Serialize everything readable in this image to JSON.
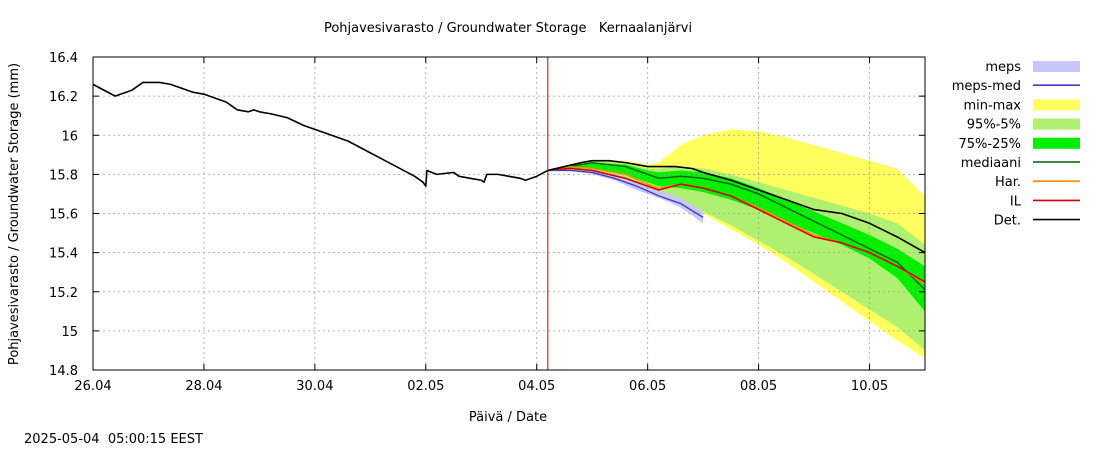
{
  "chart_data": {
    "type": "line",
    "title": "Pohjavesivarasto / Groundwater Storage   Kernaalanjärvi",
    "xlabel": "Päivä / Date",
    "ylabel": "Pohjavesivarasto / Groundwater Storage (mm)",
    "timestamp": "2025-05-04  05:00:15 EEST",
    "x_unit": "days from 26.04.2025",
    "xlim": [
      0,
      15
    ],
    "ylim": [
      14.8,
      16.4
    ],
    "grid": true,
    "legend_position": "right",
    "forecast_start_x": 8.2,
    "forecast_line_color": "#cc0000",
    "x_ticks": [
      {
        "x": 0,
        "label": "26.04"
      },
      {
        "x": 2,
        "label": "28.04"
      },
      {
        "x": 4,
        "label": "30.04"
      },
      {
        "x": 6,
        "label": "02.05"
      },
      {
        "x": 8,
        "label": "04.05"
      },
      {
        "x": 10,
        "label": "06.05"
      },
      {
        "x": 12,
        "label": "08.05"
      },
      {
        "x": 14,
        "label": "10.05"
      }
    ],
    "y_ticks": [
      {
        "y": 16.4,
        "label": "16.4"
      },
      {
        "y": 16.2,
        "label": "16.2"
      },
      {
        "y": 16.0,
        "label": "16"
      },
      {
        "y": 15.8,
        "label": "15.8"
      },
      {
        "y": 15.6,
        "label": "15.6"
      },
      {
        "y": 15.4,
        "label": "15.4"
      },
      {
        "y": 15.2,
        "label": "15.2"
      },
      {
        "y": 15.0,
        "label": "15"
      },
      {
        "y": 14.8,
        "label": "14.8"
      }
    ],
    "legend": [
      {
        "label": "meps",
        "kind": "band",
        "color": "#c8c8f8"
      },
      {
        "label": "meps-med",
        "kind": "line",
        "color": "#4040c0"
      },
      {
        "label": "min-max",
        "kind": "band",
        "color": "#ffff60"
      },
      {
        "label": "95%-5%",
        "kind": "band",
        "color": "#b0f070"
      },
      {
        "label": "75%-25%",
        "kind": "band",
        "color": "#00ee00"
      },
      {
        "label": "mediaani",
        "kind": "line",
        "color": "#006000"
      },
      {
        "label": "Har.",
        "kind": "line",
        "color": "#ff8c00"
      },
      {
        "label": "IL",
        "kind": "line",
        "color": "#dd0000"
      },
      {
        "label": "Det.",
        "kind": "line",
        "color": "#000000"
      }
    ],
    "bands": {
      "min-max": {
        "x": [
          8.2,
          8.6,
          9.0,
          9.6,
          10.0,
          10.2,
          10.6,
          11.0,
          11.5,
          12.0,
          12.5,
          13.0,
          13.5,
          14.0,
          14.5,
          15.0
        ],
        "low": [
          15.82,
          15.82,
          15.81,
          15.77,
          15.73,
          15.7,
          15.66,
          15.6,
          15.52,
          15.44,
          15.35,
          15.25,
          15.15,
          15.05,
          14.95,
          14.86
        ],
        "high": [
          15.82,
          15.85,
          15.87,
          15.87,
          15.85,
          15.86,
          15.95,
          16.0,
          16.03,
          16.02,
          15.99,
          15.95,
          15.91,
          15.87,
          15.83,
          15.69
        ]
      },
      "95%-5%": {
        "x": [
          8.2,
          8.6,
          9.0,
          9.6,
          10.0,
          10.2,
          10.6,
          11.0,
          11.5,
          12.0,
          12.5,
          13.0,
          13.5,
          14.0,
          14.5,
          15.0
        ],
        "low": [
          15.82,
          15.82,
          15.81,
          15.77,
          15.73,
          15.7,
          15.66,
          15.61,
          15.54,
          15.46,
          15.38,
          15.29,
          15.2,
          15.11,
          15.02,
          14.9
        ],
        "high": [
          15.82,
          15.85,
          15.87,
          15.86,
          15.83,
          15.83,
          15.84,
          15.83,
          15.8,
          15.76,
          15.72,
          15.68,
          15.64,
          15.6,
          15.55,
          15.44
        ]
      },
      "75%-25%": {
        "x": [
          8.2,
          8.6,
          9.0,
          9.6,
          10.0,
          10.2,
          10.6,
          11.0,
          11.5,
          12.0,
          12.5,
          13.0,
          13.5,
          14.0,
          14.5,
          15.0
        ],
        "low": [
          15.82,
          15.83,
          15.83,
          15.8,
          15.76,
          15.74,
          15.73,
          15.71,
          15.67,
          15.62,
          15.56,
          15.5,
          15.44,
          15.37,
          15.27,
          15.1
        ],
        "high": [
          15.82,
          15.85,
          15.86,
          15.85,
          15.82,
          15.81,
          15.82,
          15.81,
          15.78,
          15.73,
          15.67,
          15.61,
          15.55,
          15.49,
          15.42,
          15.33
        ]
      },
      "meps": {
        "x": [
          8.2,
          8.6,
          9.0,
          9.4,
          9.8,
          10.2,
          10.6,
          11.0
        ],
        "low": [
          15.82,
          15.82,
          15.8,
          15.77,
          15.72,
          15.68,
          15.63,
          15.55
        ],
        "high": [
          15.82,
          15.83,
          15.82,
          15.8,
          15.76,
          15.72,
          15.68,
          15.61
        ]
      }
    },
    "series": [
      {
        "name": "Det.",
        "color": "#000000",
        "width": 1.6,
        "x": [
          0,
          0.2,
          0.4,
          0.5,
          0.7,
          0.9,
          1.0,
          1.2,
          1.4,
          1.5,
          1.6,
          1.8,
          2.0,
          2.2,
          2.4,
          2.6,
          2.8,
          2.9,
          3.0,
          3.2,
          3.5,
          3.8,
          4.0,
          4.3,
          4.6,
          5.0,
          5.4,
          5.8,
          5.95,
          6.0,
          6.02,
          6.2,
          6.5,
          6.6,
          6.8,
          7.0,
          7.05,
          7.1,
          7.3,
          7.5,
          7.7,
          7.8,
          7.9,
          8.0,
          8.2,
          8.5,
          8.8,
          9.0,
          9.3,
          9.6,
          9.8,
          10.0,
          10.2,
          10.5,
          10.8,
          11.0,
          11.5,
          12.0,
          12.5,
          13.0,
          13.5,
          14.0,
          14.5,
          15.0
        ],
        "y": [
          16.26,
          16.23,
          16.2,
          16.21,
          16.23,
          16.27,
          16.27,
          16.27,
          16.26,
          16.25,
          16.24,
          16.22,
          16.21,
          16.19,
          16.17,
          16.13,
          16.12,
          16.13,
          16.12,
          16.11,
          16.09,
          16.05,
          16.03,
          16.0,
          15.97,
          15.91,
          15.85,
          15.79,
          15.76,
          15.74,
          15.82,
          15.8,
          15.81,
          15.79,
          15.78,
          15.77,
          15.76,
          15.8,
          15.8,
          15.79,
          15.78,
          15.77,
          15.78,
          15.79,
          15.82,
          15.84,
          15.86,
          15.87,
          15.87,
          15.86,
          15.85,
          15.84,
          15.84,
          15.84,
          15.83,
          15.81,
          15.77,
          15.72,
          15.67,
          15.62,
          15.6,
          15.55,
          15.48,
          15.4
        ]
      },
      {
        "name": "mediaani",
        "color": "#006000",
        "width": 1.4,
        "x": [
          8.2,
          8.6,
          9.0,
          9.6,
          10.0,
          10.2,
          10.6,
          11.0,
          11.5,
          12.0,
          12.5,
          13.0,
          13.5,
          14.0,
          14.5,
          15.0
        ],
        "y": [
          15.82,
          15.84,
          15.86,
          15.84,
          15.8,
          15.78,
          15.79,
          15.78,
          15.75,
          15.7,
          15.63,
          15.56,
          15.49,
          15.42,
          15.35,
          15.21
        ]
      },
      {
        "name": "Har.",
        "color": "#ff8c00",
        "width": 1.4,
        "x": [
          8.2,
          8.6,
          9.0,
          9.6,
          10.0,
          10.2,
          10.6,
          11.0,
          11.5,
          12.0,
          12.5,
          13.0,
          13.5,
          14.0,
          14.5,
          15.0
        ],
        "y": [
          15.82,
          15.84,
          15.83,
          15.8,
          15.75,
          15.73,
          15.75,
          15.73,
          15.69,
          15.63,
          15.56,
          15.49,
          15.45,
          15.4,
          15.33,
          15.24
        ]
      },
      {
        "name": "IL",
        "color": "#dd0000",
        "width": 1.6,
        "x": [
          8.2,
          8.6,
          9.0,
          9.6,
          10.0,
          10.2,
          10.6,
          11.0,
          11.5,
          12.0,
          12.5,
          13.0,
          13.5,
          14.0,
          14.5,
          15.0
        ],
        "y": [
          15.82,
          15.83,
          15.82,
          15.78,
          15.74,
          15.72,
          15.75,
          15.73,
          15.69,
          15.62,
          15.55,
          15.48,
          15.45,
          15.4,
          15.33,
          15.25
        ]
      },
      {
        "name": "meps-med",
        "color": "#4040c0",
        "width": 1.4,
        "x": [
          8.2,
          8.6,
          9.0,
          9.4,
          9.8,
          10.2,
          10.6,
          11.0
        ],
        "y": [
          15.82,
          15.82,
          15.81,
          15.78,
          15.74,
          15.69,
          15.65,
          15.58
        ]
      }
    ]
  }
}
